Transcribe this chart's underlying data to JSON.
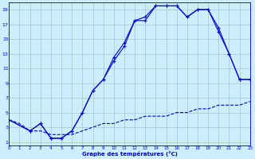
{
  "title": "Graphe des températures (°C)",
  "background_color": "#cceeff",
  "grid_color": "#aacccc",
  "line_color": "#0000cc",
  "x_ticks": [
    0,
    1,
    2,
    3,
    4,
    5,
    6,
    7,
    8,
    9,
    10,
    11,
    12,
    13,
    14,
    15,
    16,
    17,
    18,
    19,
    20,
    21,
    22,
    23
  ],
  "y_ticks": [
    1,
    3,
    5,
    7,
    9,
    11,
    13,
    15,
    17,
    19
  ],
  "xlim": [
    0,
    23
  ],
  "ylim": [
    0.5,
    20
  ],
  "curve_dashed_x": [
    0,
    1,
    2,
    3,
    4,
    5,
    6,
    7,
    8,
    9,
    10,
    11,
    12,
    13,
    14,
    15,
    16,
    17,
    18,
    19,
    20,
    21,
    22,
    23
  ],
  "curve_dashed_y": [
    4,
    3.5,
    2.5,
    2.5,
    2,
    2,
    2,
    2.5,
    3,
    3.5,
    3.5,
    4,
    4,
    4.5,
    4.5,
    4.5,
    5,
    5,
    5.5,
    5.5,
    6,
    6,
    6,
    6.5
  ],
  "curve_mid_x": [
    0,
    2,
    3,
    4,
    5,
    6,
    7,
    8,
    9,
    10,
    11,
    12,
    13,
    14,
    15,
    16,
    17,
    18,
    19,
    20,
    21,
    22,
    23
  ],
  "curve_mid_y": [
    4,
    2.5,
    3.5,
    1.5,
    1.5,
    2.5,
    5,
    8,
    9.5,
    12,
    14,
    17.5,
    17.5,
    19.5,
    19.5,
    19.5,
    18,
    19,
    19,
    16.5,
    13,
    9.5,
    9.5
  ],
  "curve_top_x": [
    0,
    2,
    3,
    4,
    5,
    6,
    7,
    8,
    9,
    10,
    11,
    12,
    13,
    14,
    15,
    16,
    17,
    18,
    19,
    20,
    21,
    22,
    23
  ],
  "curve_top_y": [
    4,
    2.5,
    3.5,
    1.5,
    1.5,
    2.5,
    5,
    8,
    9.5,
    12.5,
    14.5,
    17.5,
    18,
    19.5,
    19.5,
    19.5,
    18,
    19,
    19,
    16,
    13,
    9.5,
    9.5
  ]
}
